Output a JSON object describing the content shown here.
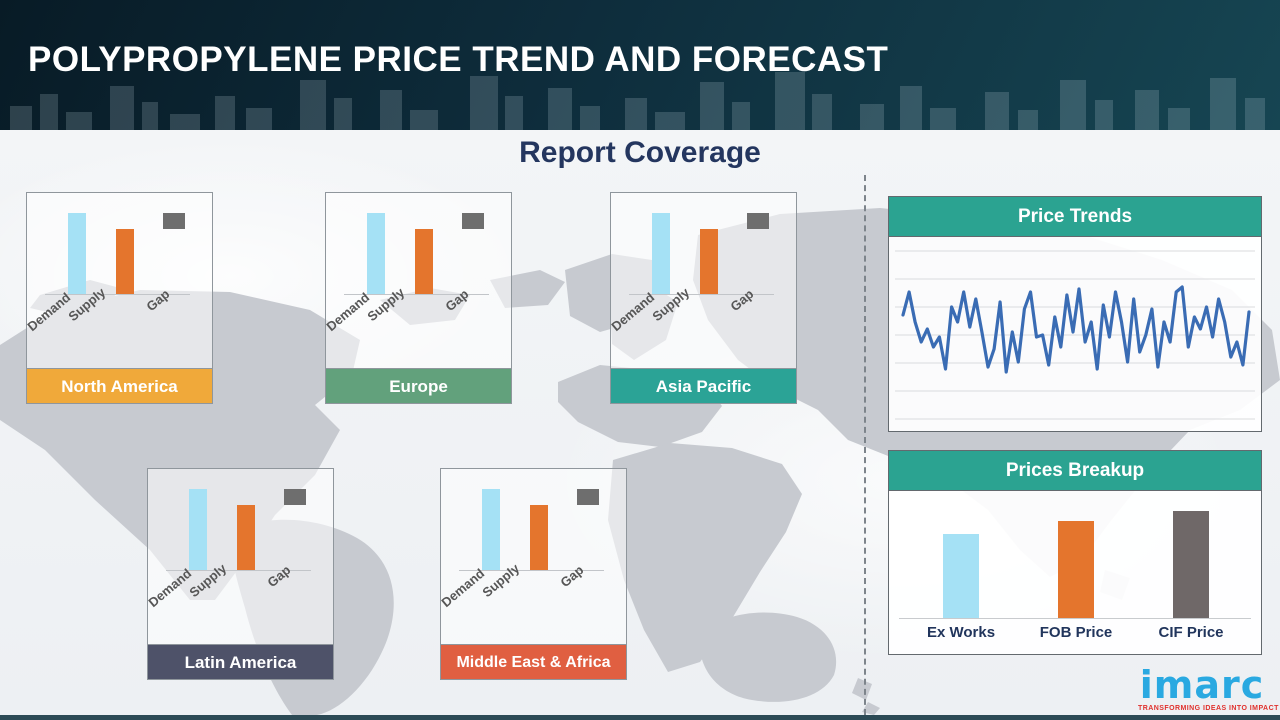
{
  "header": {
    "title": "POLYPROPYLENE PRICE TREND AND FORECAST"
  },
  "main": {
    "section_title": "Report Coverage"
  },
  "regions": [
    {
      "name": "North America",
      "color": "#f0a93a"
    },
    {
      "name": "Europe",
      "color": "#62a17c"
    },
    {
      "name": "Asia Pacific",
      "color": "#2ba396"
    },
    {
      "name": "Latin America",
      "color": "#4e5269"
    },
    {
      "name": "Middle East & Africa",
      "color": "#e05f41"
    }
  ],
  "panels": {
    "price_trends": {
      "title": "Price Trends"
    },
    "prices_breakup": {
      "title": "Prices Breakup"
    }
  },
  "chart_data": [
    {
      "id": "regional_demand_supply_gap",
      "type": "bar",
      "title": "Demand / Supply / Gap per region",
      "categories": [
        "Demand",
        "Supply",
        "Gap"
      ],
      "values": [
        80,
        64,
        16
      ],
      "colors": [
        "#a5e1f5",
        "#e4752d",
        "#6e6e6e"
      ],
      "note": "Same illustrative chart repeated on all five region cards; Gap drawn as floating block between Demand and Supply tops",
      "applies_to": [
        "North America",
        "Europe",
        "Asia Pacific",
        "Latin America",
        "Middle East & Africa"
      ]
    },
    {
      "id": "price_trends",
      "type": "line",
      "title": "Price Trends",
      "line_color": "#3a6cb4",
      "grid": true,
      "xlabel": "",
      "ylabel": "",
      "ylim": [
        0,
        100
      ],
      "values": [
        62,
        85,
        55,
        35,
        48,
        30,
        40,
        8,
        70,
        55,
        85,
        50,
        78,
        45,
        10,
        28,
        75,
        5,
        45,
        15,
        68,
        85,
        40,
        42,
        12,
        60,
        30,
        82,
        45,
        88,
        35,
        55,
        8,
        72,
        40,
        85,
        55,
        15,
        78,
        25,
        42,
        68,
        10,
        55,
        35,
        85,
        90,
        30,
        60,
        48,
        70,
        40,
        78,
        55,
        20,
        35,
        12,
        65
      ]
    },
    {
      "id": "prices_breakup",
      "type": "bar",
      "title": "Prices Breakup",
      "categories": [
        "Ex Works",
        "FOB Price",
        "CIF Price"
      ],
      "values": [
        84,
        97,
        107
      ],
      "colors": [
        "#a5e1f5",
        "#e4752d",
        "#6f6868"
      ],
      "xlabel": "",
      "ylabel": ""
    }
  ],
  "logo": {
    "name": "imarc",
    "tagline": "TRANSFORMING IDEAS INTO IMPACT"
  }
}
